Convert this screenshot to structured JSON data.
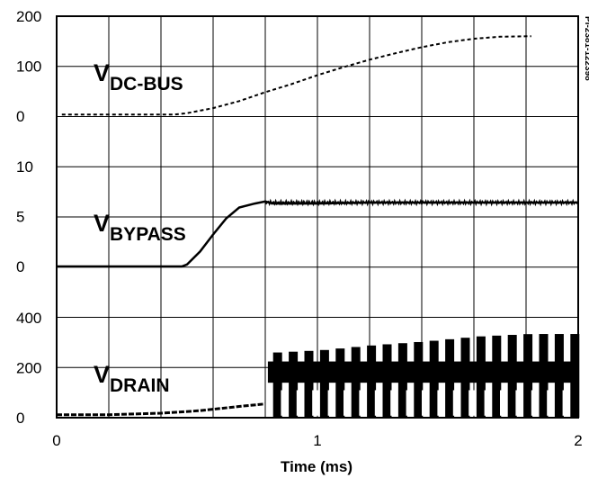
{
  "chart_data": {
    "type": "line",
    "doc_id": "PI-2381-122398",
    "xlabel": "Time (ms)",
    "xlim": [
      0,
      2
    ],
    "x_ticks": [
      "0",
      "1",
      "2"
    ],
    "grid": true,
    "series_color": "#000000",
    "panels": [
      {
        "label_main": "V",
        "label_sub": "DC-BUS",
        "ylim": [
          0,
          200
        ],
        "y_ticks": [
          "0",
          "100",
          "200"
        ],
        "style": "dashed",
        "points": [
          [
            0.02,
            3
          ],
          [
            0.25,
            3
          ],
          [
            0.45,
            3
          ],
          [
            0.5,
            6
          ],
          [
            0.6,
            16
          ],
          [
            0.7,
            30
          ],
          [
            0.8,
            48
          ],
          [
            0.9,
            64
          ],
          [
            1.0,
            82
          ],
          [
            1.1,
            98
          ],
          [
            1.2,
            113
          ],
          [
            1.3,
            126
          ],
          [
            1.4,
            138
          ],
          [
            1.5,
            148
          ],
          [
            1.6,
            155
          ],
          [
            1.7,
            159
          ],
          [
            1.82,
            160
          ]
        ]
      },
      {
        "label_main": "V",
        "label_sub": "BYPASS",
        "ylim": [
          0,
          10
        ],
        "y_ticks": [
          "0",
          "5",
          "10"
        ],
        "style": "solid",
        "points": [
          [
            0,
            0
          ],
          [
            0.48,
            0
          ],
          [
            0.5,
            0.2
          ],
          [
            0.55,
            1.5
          ],
          [
            0.6,
            3.2
          ],
          [
            0.65,
            4.8
          ],
          [
            0.7,
            5.9
          ],
          [
            0.76,
            6.3
          ],
          [
            0.8,
            6.5
          ],
          [
            0.83,
            6.3
          ],
          [
            1.0,
            6.3
          ],
          [
            1.2,
            6.4
          ],
          [
            1.4,
            6.4
          ],
          [
            1.6,
            6.4
          ],
          [
            1.8,
            6.4
          ],
          [
            2.0,
            6.4
          ]
        ]
      },
      {
        "label_main": "V",
        "label_sub": "DRAIN",
        "ylim": [
          0,
          400
        ],
        "y_ticks": [
          "0",
          "200",
          "400"
        ],
        "style": "switching",
        "ramp": [
          [
            0,
            12
          ],
          [
            0.2,
            12
          ],
          [
            0.4,
            18
          ],
          [
            0.55,
            28
          ],
          [
            0.7,
            45
          ],
          [
            0.8,
            55
          ]
        ],
        "band": {
          "x_start": 0.81,
          "x_end": 2.0,
          "low": 140,
          "high": 225
        },
        "envelope": [
          [
            0.81,
            260
          ],
          [
            1.0,
            270
          ],
          [
            1.2,
            290
          ],
          [
            1.4,
            305
          ],
          [
            1.6,
            325
          ],
          [
            1.8,
            335
          ],
          [
            2.0,
            335
          ]
        ]
      }
    ]
  }
}
